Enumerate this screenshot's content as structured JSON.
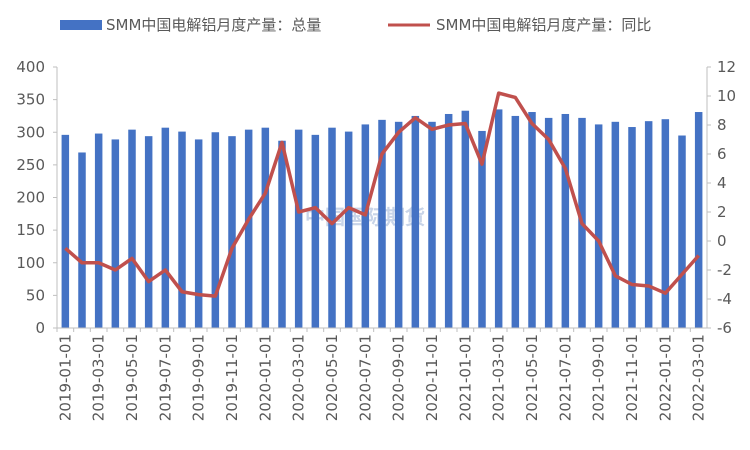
{
  "colors": {
    "bar": "#4472c4",
    "line": "#c0504d",
    "axis_text": "#595959",
    "axis_line": "#bfbfbf"
  },
  "watermark": "中国国际期货",
  "chart_data": {
    "type": "bar",
    "x": [
      "2019-01-01",
      "2019-02-01",
      "2019-03-01",
      "2019-04-01",
      "2019-05-01",
      "2019-06-01",
      "2019-07-01",
      "2019-08-01",
      "2019-09-01",
      "2019-10-01",
      "2019-11-01",
      "2019-12-01",
      "2020-01-01",
      "2020-02-01",
      "2020-03-01",
      "2020-04-01",
      "2020-05-01",
      "2020-06-01",
      "2020-07-01",
      "2020-08-01",
      "2020-09-01",
      "2020-10-01",
      "2020-11-01",
      "2020-12-01",
      "2021-01-01",
      "2021-02-01",
      "2021-03-01",
      "2021-04-01",
      "2021-05-01",
      "2021-06-01",
      "2021-07-01",
      "2021-08-01",
      "2021-09-01",
      "2021-10-01",
      "2021-11-01",
      "2021-12-01",
      "2022-01-01",
      "2022-02-01",
      "2022-03-01"
    ],
    "x_tick_labels": [
      "2019-01-01",
      "2019-03-01",
      "2019-05-01",
      "2019-07-01",
      "2019-09-01",
      "2019-11-01",
      "2020-01-01",
      "2020-03-01",
      "2020-05-01",
      "2020-07-01",
      "2020-09-01",
      "2020-11-01",
      "2021-01-01",
      "2021-03-01",
      "2021-05-01",
      "2021-07-01",
      "2021-09-01",
      "2021-11-01",
      "2022-01-01",
      "2022-03-01"
    ],
    "series": [
      {
        "name": "SMM中国电解铝月度产量：总量",
        "type": "bar",
        "axis": "left",
        "values": [
          296,
          269,
          298,
          289,
          304,
          294,
          307,
          301,
          289,
          300,
          294,
          304,
          307,
          287,
          304,
          296,
          307,
          301,
          312,
          319,
          316,
          325,
          316,
          328,
          333,
          302,
          335,
          325,
          331,
          322,
          328,
          322,
          312,
          316,
          308,
          317,
          320,
          295,
          331
        ]
      },
      {
        "name": "SMM中国电解铝月度产量：同比",
        "type": "line",
        "axis": "right",
        "values": [
          -0.5,
          -1.5,
          -1.5,
          -2.0,
          -1.2,
          -2.8,
          -2.0,
          -3.5,
          -3.7,
          -3.8,
          -0.5,
          1.5,
          3.3,
          6.8,
          2.0,
          2.3,
          1.2,
          2.3,
          1.8,
          6.0,
          7.5,
          8.5,
          7.7,
          8.0,
          8.1,
          5.3,
          10.2,
          9.9,
          8.1,
          7.0,
          5.0,
          1.2,
          0.0,
          -2.4,
          -3.0,
          -3.1,
          -3.6,
          -2.3,
          -1.0
        ]
      }
    ],
    "y_left": {
      "min": 0,
      "max": 400,
      "ticks": [
        0,
        50,
        100,
        150,
        200,
        250,
        300,
        350,
        400
      ]
    },
    "y_right": {
      "min": -6,
      "max": 12,
      "ticks": [
        -6,
        -4,
        -2,
        0,
        2,
        4,
        6,
        8,
        10,
        12
      ]
    },
    "grid": false,
    "legend_position": "top"
  }
}
